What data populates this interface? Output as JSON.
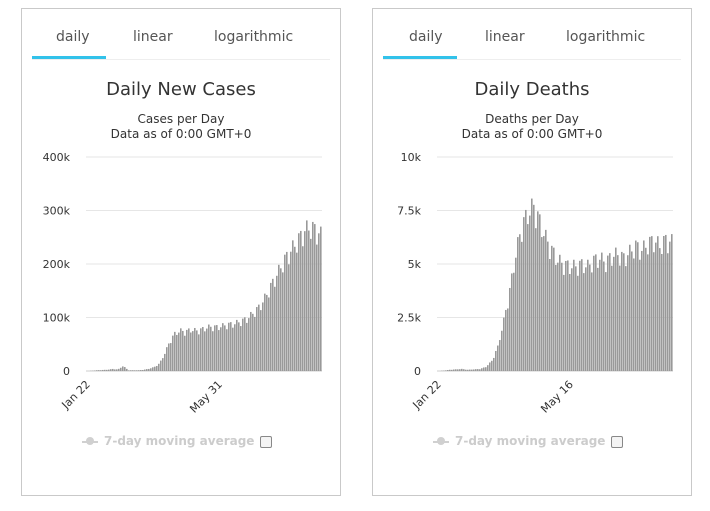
{
  "tabs": [
    "daily",
    "linear",
    "logarithmic"
  ],
  "active_tab": "daily",
  "legend_label": "7-day moving average",
  "colors": {
    "bar": "#999999",
    "grid": "#e6e6e6",
    "axis": "#333333",
    "tab_active": "#32c2ea",
    "legend": "#cccccc"
  },
  "chart_data": [
    {
      "type": "bar",
      "title": "Daily New Cases",
      "subtitle": [
        "Cases per Day",
        "Data as of 0:00 GMT+0"
      ],
      "x_tick_labels": [
        "Jan 22",
        "May 31"
      ],
      "y_tick_labels": [
        "0",
        "100k",
        "200k",
        "300k",
        "400k"
      ],
      "ylim": [
        0,
        400000
      ],
      "legend": "7-day moving average",
      "x_range": [
        "Jan 22",
        "Sep 22"
      ],
      "values_by_week": [
        0,
        500,
        1500,
        2000,
        2500,
        4000,
        3000,
        10000,
        1500,
        1500,
        1500,
        2500,
        4500,
        8000,
        15000,
        35000,
        60000,
        75000,
        80000,
        78000,
        82000,
        80000,
        82000,
        86000,
        88000,
        87000,
        89000,
        92000,
        93000,
        96000,
        100000,
        105000,
        115000,
        125000,
        140000,
        160000,
        180000,
        200000,
        220000,
        235000,
        250000,
        265000,
        280000,
        285000,
        280000,
        270000
      ]
    },
    {
      "type": "bar",
      "title": "Daily Deaths",
      "subtitle": [
        "Deaths per Day",
        "Data as of 0:00 GMT+0"
      ],
      "x_tick_labels": [
        "Jan 22",
        "May 16"
      ],
      "y_tick_labels": [
        "0",
        "2.5k",
        "5k",
        "7.5k",
        "10k"
      ],
      "ylim": [
        0,
        10000
      ],
      "legend": "7-day moving average",
      "x_range": [
        "Jan 22",
        "Aug 7"
      ],
      "values_by_week": [
        0,
        20,
        60,
        80,
        100,
        60,
        80,
        100,
        200,
        500,
        1200,
        2500,
        4000,
        5800,
        7200,
        7800,
        8200,
        7400,
        6600,
        6000,
        5500,
        5300,
        5200,
        5200,
        5300,
        5200,
        5500,
        5600,
        5400,
        5700,
        5800,
        5600,
        5900,
        6200,
        6000,
        6300,
        6500,
        6200,
        6500,
        6400
      ]
    }
  ]
}
